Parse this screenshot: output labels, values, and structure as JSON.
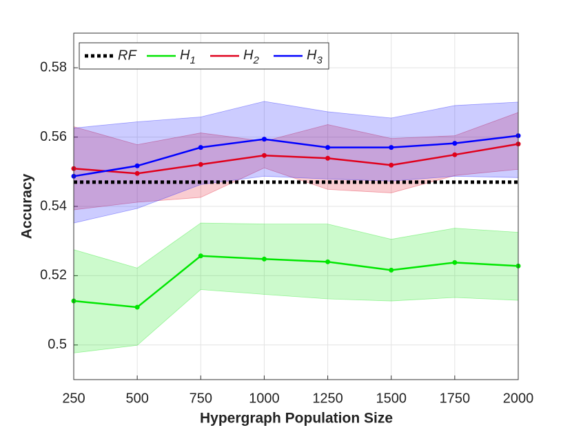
{
  "chart_data": {
    "type": "line",
    "xlabel": "Hypergraph Population Size",
    "ylabel": "Accuracy",
    "x": [
      250,
      500,
      750,
      1000,
      1250,
      1500,
      1750,
      2000
    ],
    "xlim": [
      250,
      2000
    ],
    "xticks": [
      250,
      500,
      750,
      1000,
      1250,
      1500,
      1750,
      2000
    ],
    "ylim": [
      0.49,
      0.59
    ],
    "yticks": [
      0.5,
      0.52,
      0.54,
      0.56,
      0.58
    ],
    "grid": true,
    "legend": "upper left",
    "reference": {
      "name": "RF",
      "value": 0.547,
      "color": "#000000"
    },
    "series": [
      {
        "name": "H1",
        "color": "#00e600",
        "values": [
          0.5127,
          0.5109,
          0.5257,
          0.5248,
          0.524,
          0.5216,
          0.5238,
          0.5228
        ],
        "upper": [
          0.5275,
          0.5222,
          0.5352,
          0.5349,
          0.5349,
          0.5305,
          0.5337,
          0.5325
        ],
        "lower": [
          0.4977,
          0.4999,
          0.516,
          0.5146,
          0.5133,
          0.5127,
          0.5137,
          0.5129
        ]
      },
      {
        "name": "H2",
        "color": "#e0001b",
        "values": [
          0.5509,
          0.5495,
          0.5521,
          0.5547,
          0.5539,
          0.5519,
          0.5549,
          0.558
        ],
        "upper": [
          0.563,
          0.5578,
          0.5612,
          0.5588,
          0.5636,
          0.5596,
          0.5604,
          0.5671
        ],
        "lower": [
          0.539,
          0.5412,
          0.5426,
          0.5511,
          0.5449,
          0.5439,
          0.5489,
          0.5507
        ]
      },
      {
        "name": "H3",
        "color": "#0000ff",
        "values": [
          0.5487,
          0.5517,
          0.557,
          0.5594,
          0.557,
          0.557,
          0.5582,
          0.5604
        ],
        "upper": [
          0.5626,
          0.5644,
          0.5658,
          0.5703,
          0.5673,
          0.5655,
          0.5691,
          0.5701
        ],
        "lower": [
          0.5352,
          0.5394,
          0.5463,
          0.5487,
          0.5479,
          0.5473,
          0.5487,
          0.5483
        ]
      }
    ]
  }
}
